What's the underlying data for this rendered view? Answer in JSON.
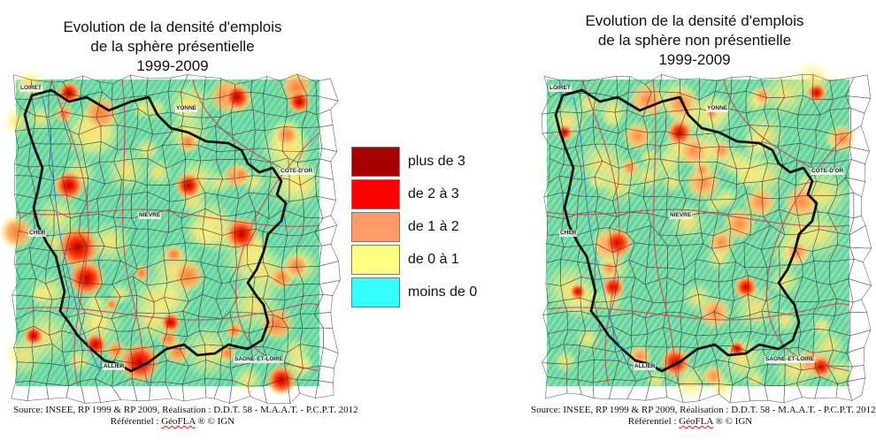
{
  "left_map": {
    "title": [
      "Evolution de la densité d'emplois",
      "de la sphère présentielle",
      "1999-2009"
    ],
    "places": {
      "loiret": "LOIRET",
      "yonne": "YONNE",
      "cote_dor": "COTE-D'OR",
      "nievre": "NIEVRE",
      "cher": "CHER",
      "allier": "ALLIER",
      "saone_et_loire": "SAONE-ET-LOIRE"
    },
    "source_line1": "Source: INSEE, RP 1999 & RP 2009, Réalisation : D.D.T. 58 - M.A.A.T. - P.C.P.T. 2012",
    "source_line2_prefix": "Référentiel : ",
    "source_line2_brand": "GéoFLA",
    "source_line2_suffix": " ® © IGN"
  },
  "right_map": {
    "title": [
      "Evolution de la densité d'emplois",
      "de la sphère non présentielle",
      "1999-2009"
    ],
    "places": {
      "loiret": "LOIRET",
      "yonne": "YONNE",
      "cote_dor": "COTE-D'OR",
      "nievre": "NIEVRE",
      "cher": "CHER",
      "allier": "ALLIER",
      "saone_et_loire": "SAONE-ET-LOIRE"
    },
    "source_line1": "Source: INSEE, RP 1999 & RP 2009, Réalisation : D.D.T. 58 - M.A.A.T. - P.C.P.T. 2012",
    "source_line2_prefix": "Référentiel : ",
    "source_line2_brand": "GéoFLA",
    "source_line2_suffix": " ® © IGN"
  },
  "legend": [
    {
      "label": "plus de 3",
      "color": "#a80000"
    },
    {
      "label": "de 2 à 3",
      "color": "#ff0000"
    },
    {
      "label": "de 1 à 2",
      "color": "#ff9966"
    },
    {
      "label": "de 0 à 1",
      "color": "#ffff80"
    },
    {
      "label": "moins de 0",
      "color": "#33ffff"
    }
  ]
}
